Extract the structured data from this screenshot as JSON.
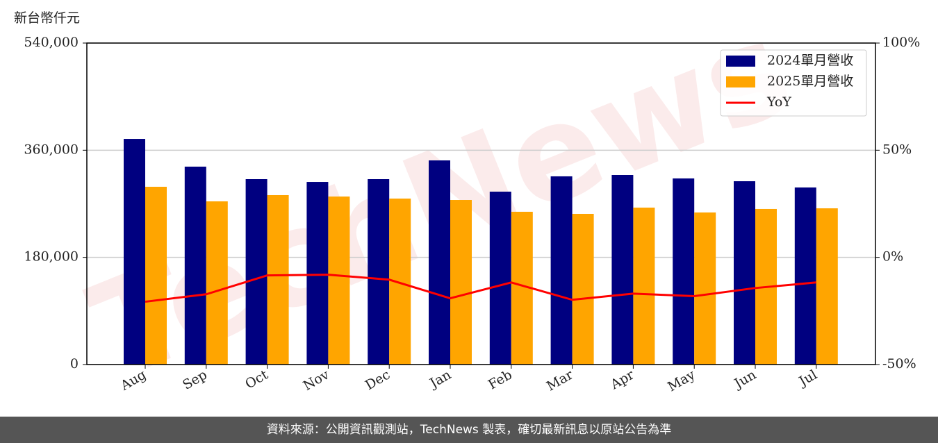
{
  "chart_data": {
    "type": "bar-line",
    "y_label": "新台幣仟元",
    "categories": [
      "Aug",
      "Sep",
      "Oct",
      "Nov",
      "Dec",
      "Jan",
      "Feb",
      "Mar",
      "Apr",
      "May",
      "Jun",
      "Jul"
    ],
    "series": [
      {
        "name": "2024單月營收",
        "color": "#000080",
        "values": [
          379000,
          332400,
          311400,
          306700,
          311400,
          342900,
          290400,
          316100,
          318400,
          312600,
          307900,
          297400
        ]
      },
      {
        "name": "2025單月營收",
        "color": "#ffa500",
        "values": [
          298600,
          274100,
          284600,
          282200,
          278800,
          276400,
          256600,
          253100,
          263600,
          255400,
          261300,
          262400
        ]
      },
      {
        "name": "YoY",
        "color": "#ff0000",
        "axis": "y2",
        "values": [
          -20.7,
          -17.2,
          -8.4,
          -8.1,
          -10.4,
          -19.1,
          -11.7,
          -19.8,
          -16.9,
          -18.1,
          -14.3,
          -11.7
        ]
      }
    ],
    "ylim": [
      0,
      540000
    ],
    "yticks": [
      0,
      {
        "value": 180000,
        "label": "180,000"
      },
      {
        "value": 360000,
        "label": "360,000"
      },
      {
        "value": 540000,
        "label": "540,000"
      }
    ],
    "y2lim": [
      -50,
      100
    ],
    "y2ticks": [
      {
        "value": -50,
        "label": "-50%"
      },
      {
        "value": 0,
        "label": "0%"
      },
      {
        "value": 50,
        "label": "50%"
      },
      {
        "value": 100,
        "label": "100%"
      }
    ],
    "grid": true,
    "legend": "upper right",
    "watermark": "TechNews",
    "footer": "資料來源：公開資訊觀測站，TechNews 製表，確切最新訊息以原站公告為準"
  }
}
